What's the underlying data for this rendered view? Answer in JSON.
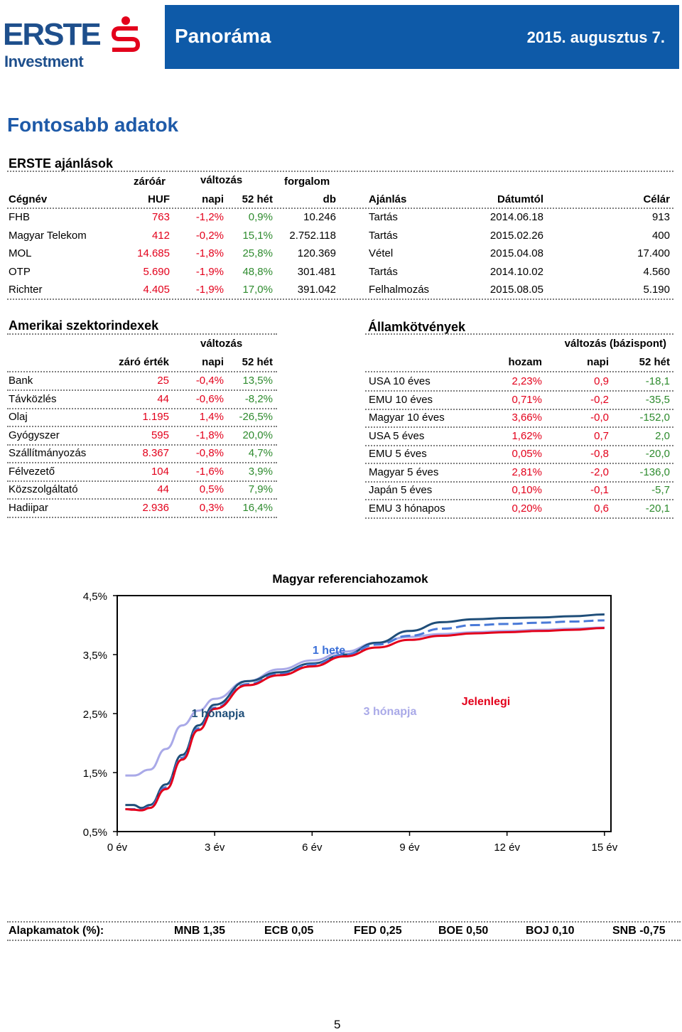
{
  "header": {
    "logo_brand": "ERSTE",
    "logo_sub": "Investment",
    "title": "Panoráma",
    "date": "2015. augusztus 7.",
    "colors": {
      "banner": "#0e5aa8",
      "logo": "#1e4f8c",
      "logo_mark": "#e3001b"
    }
  },
  "main_title": "Fontosabb adatok",
  "erste": {
    "title": "ERSTE ajánlások",
    "group_headers": {
      "zaroar": "záróár",
      "valtozas": "változás",
      "forgalom": "forgalom"
    },
    "columns": [
      "Cégnév",
      "HUF",
      "napi",
      "52 hét",
      "db",
      "Ajánlás",
      "Dátumtól",
      "Célár"
    ],
    "rows": [
      {
        "name": "FHB",
        "price": "763",
        "daily": "-1,2%",
        "week52": "0,9%",
        "volume": "10.246",
        "rec": "Tartás",
        "date": "2014.06.18",
        "target": "913"
      },
      {
        "name": "Magyar Telekom",
        "price": "412",
        "daily": "-0,2%",
        "week52": "15,1%",
        "volume": "2.752.118",
        "rec": "Tartás",
        "date": "2015.02.26",
        "target": "400"
      },
      {
        "name": "MOL",
        "price": "14.685",
        "daily": "-1,8%",
        "week52": "25,8%",
        "volume": "120.369",
        "rec": "Vétel",
        "date": "2015.04.08",
        "target": "17.400"
      },
      {
        "name": "OTP",
        "price": "5.690",
        "daily": "-1,9%",
        "week52": "48,8%",
        "volume": "301.481",
        "rec": "Tartás",
        "date": "2014.10.02",
        "target": "4.560"
      },
      {
        "name": "Richter",
        "price": "4.405",
        "daily": "-1,9%",
        "week52": "17,0%",
        "volume": "391.042",
        "rec": "Felhalmozás",
        "date": "2015.08.05",
        "target": "5.190"
      }
    ]
  },
  "sectors": {
    "title": "Amerikai szektorindexek",
    "group_header": "változás",
    "columns": [
      "záró érték",
      "napi",
      "52 hét"
    ],
    "rows": [
      {
        "name": "Bank",
        "close": "25",
        "daily": "-0,4%",
        "week52": "13,5%"
      },
      {
        "name": "Távközlés",
        "close": "44",
        "daily": "-0,6%",
        "week52": "-8,2%"
      },
      {
        "name": "Olaj",
        "close": "1.195",
        "daily": "1,4%",
        "week52": "-26,5%"
      },
      {
        "name": "Gyógyszer",
        "close": "595",
        "daily": "-1,8%",
        "week52": "20,0%"
      },
      {
        "name": "Szállítmányozás",
        "close": "8.367",
        "daily": "-0,8%",
        "week52": "4,7%"
      },
      {
        "name": "Félvezető",
        "close": "104",
        "daily": "-1,6%",
        "week52": "3,9%"
      },
      {
        "name": "Közszolgáltató",
        "close": "44",
        "daily": "0,5%",
        "week52": "7,9%"
      },
      {
        "name": "Hadiipar",
        "close": "2.936",
        "daily": "0,3%",
        "week52": "16,4%"
      }
    ]
  },
  "bonds": {
    "title": "Államkötvények",
    "group_header": "változás (bázispont)",
    "columns": [
      "hozam",
      "napi",
      "52 hét"
    ],
    "rows": [
      {
        "name": "USA 10 éves",
        "yield": "2,23%",
        "daily": "0,9",
        "week52": "-18,1"
      },
      {
        "name": "EMU 10 éves",
        "yield": "0,71%",
        "daily": "-0,2",
        "week52": "-35,5"
      },
      {
        "name": "Magyar 10 éves",
        "yield": "3,66%",
        "daily": "-0,0",
        "week52": "-152,0"
      },
      {
        "name": "USA 5 éves",
        "yield": "1,62%",
        "daily": "0,7",
        "week52": "2,0"
      },
      {
        "name": "EMU 5 éves",
        "yield": "0,05%",
        "daily": "-0,8",
        "week52": "-20,0"
      },
      {
        "name": "Magyar 5 éves",
        "yield": "2,81%",
        "daily": "-2,0",
        "week52": "-136,0"
      },
      {
        "name": "Japán 5 éves",
        "yield": "0,10%",
        "daily": "-0,1",
        "week52": "-5,7"
      },
      {
        "name": "EMU 3 hónapos",
        "yield": "0,20%",
        "daily": "0,6",
        "week52": "-20,1"
      }
    ]
  },
  "chart_data": {
    "type": "line",
    "title": "Magyar referenciahozamok",
    "xlabel": "",
    "ylabel": "",
    "xlim": [
      0,
      15.2
    ],
    "ylim": [
      0.5,
      4.5
    ],
    "x_ticks": [
      0,
      3,
      6,
      9,
      12,
      15
    ],
    "x_tick_labels": [
      "0 év",
      "3 év",
      "6 év",
      "9 év",
      "12 év",
      "15 év"
    ],
    "y_ticks": [
      0.5,
      1.5,
      2.5,
      3.5,
      4.5
    ],
    "y_tick_labels": [
      "0,5%",
      "1,5%",
      "2,5%",
      "3,5%",
      "4,5%"
    ],
    "grid": false,
    "series": [
      {
        "name": "1 hónapja",
        "color": "#1f4e79",
        "dash": false,
        "x": [
          0.25,
          0.5,
          0.75,
          1,
          1.5,
          2,
          2.5,
          3,
          4,
          5,
          6,
          7,
          8,
          9,
          10,
          11,
          12,
          13,
          14,
          15
        ],
        "y": [
          0.95,
          0.95,
          0.9,
          0.95,
          1.3,
          1.8,
          2.3,
          2.65,
          3.05,
          3.2,
          3.35,
          3.5,
          3.7,
          3.9,
          4.05,
          4.1,
          4.12,
          4.13,
          4.15,
          4.18
        ]
      },
      {
        "name": "1 hete",
        "color": "#4a7ad8",
        "dash": true,
        "x": [
          0.25,
          0.5,
          0.75,
          1,
          1.5,
          2,
          2.5,
          3,
          4,
          5,
          6,
          7,
          8,
          9,
          10,
          11,
          12,
          13,
          14,
          15
        ],
        "y": [
          0.88,
          0.88,
          0.87,
          0.92,
          1.25,
          1.75,
          2.25,
          2.6,
          3.0,
          3.17,
          3.33,
          3.5,
          3.67,
          3.82,
          3.94,
          4.0,
          4.02,
          4.04,
          4.06,
          4.08
        ]
      },
      {
        "name": "3 hónapja",
        "color": "#a9a9e8",
        "dash": false,
        "x": [
          0.25,
          0.5,
          1,
          1.5,
          2,
          2.5,
          3,
          4,
          5,
          6,
          7,
          8,
          9,
          10,
          11,
          12,
          13,
          14,
          15
        ],
        "y": [
          1.45,
          1.45,
          1.55,
          1.9,
          2.3,
          2.55,
          2.75,
          3.05,
          3.25,
          3.4,
          3.55,
          3.7,
          3.8,
          3.85,
          3.88,
          3.9,
          3.92,
          3.94,
          3.96
        ]
      },
      {
        "name": "Jelenlegi",
        "color": "#e3001b",
        "dash": false,
        "x": [
          0.25,
          0.5,
          0.75,
          1,
          1.5,
          2,
          2.5,
          3,
          4,
          5,
          6,
          7,
          8,
          9,
          10,
          11,
          12,
          13,
          14,
          15
        ],
        "y": [
          0.88,
          0.87,
          0.86,
          0.9,
          1.22,
          1.72,
          2.22,
          2.58,
          2.98,
          3.15,
          3.3,
          3.47,
          3.62,
          3.75,
          3.82,
          3.86,
          3.88,
          3.9,
          3.92,
          3.95
        ]
      }
    ],
    "labels": [
      {
        "text": "1 hete",
        "color": "#3a6fd8"
      },
      {
        "text": "1 hónapja",
        "color": "#1f4e79"
      },
      {
        "text": "3 hónapja",
        "color": "#a9a9e8"
      },
      {
        "text": "Jelenlegi",
        "color": "#e3001b"
      }
    ]
  },
  "rates": {
    "label": "Alapkamatok (%):",
    "items": [
      "MNB 1,35",
      "ECB 0,05",
      "FED 0,25",
      "BOE 0,50",
      "BOJ 0,10",
      "SNB -0,75"
    ]
  },
  "page_number": "5"
}
